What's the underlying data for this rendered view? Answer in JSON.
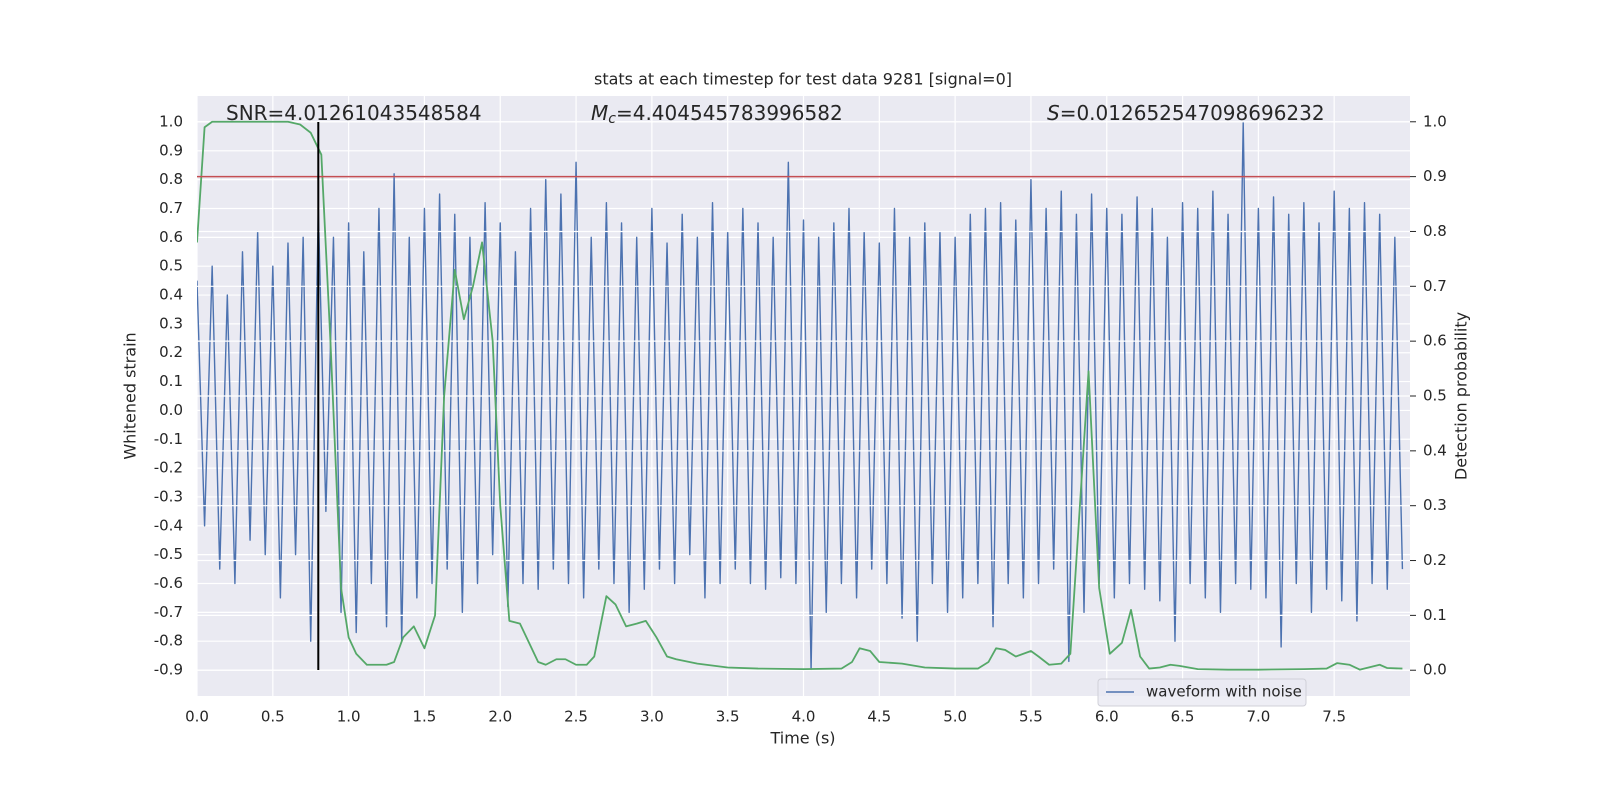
{
  "chart_data": {
    "type": "line",
    "title": "stats at each timestep for test data 9281 [signal=0]",
    "xlabel": "Time (s)",
    "ylabel": "Whitened strain",
    "y2label": "Detection probability",
    "annotations": [
      {
        "text": "SNR=4.01261043548584"
      },
      {
        "symbol": "M",
        "subscript": "c",
        "text": "=4.404545783996582"
      },
      {
        "symbol": "S",
        "text": "=0.012652547098696232"
      }
    ],
    "xlim": [
      0,
      8
    ],
    "ylim": [
      -0.99,
      1.09
    ],
    "y2lim": [
      -0.047,
      1.047
    ],
    "xticks": [
      {
        "value": 0,
        "label": "0.0"
      },
      0.5,
      {
        "value": 1,
        "label": "1.0"
      },
      1.5,
      {
        "value": 2,
        "label": "2.0"
      },
      2.5,
      {
        "value": 3,
        "label": "3.0"
      },
      3.5,
      {
        "value": 4,
        "label": "4.0"
      },
      4.5,
      {
        "value": 5,
        "label": "5.0"
      },
      5.5,
      {
        "value": 6,
        "label": "6.0"
      },
      6.5,
      {
        "value": 7,
        "label": "7.0"
      },
      7.5
    ],
    "yticks": [
      -0.9,
      -0.8,
      -0.7,
      -0.6,
      -0.5,
      -0.4,
      -0.3,
      -0.2,
      -0.1,
      {
        "value": 0,
        "label": "0.0"
      },
      0.1,
      0.2,
      0.3,
      0.4,
      0.5,
      0.6,
      0.7,
      0.8,
      0.9,
      {
        "value": 1,
        "label": "1.0"
      }
    ],
    "y2ticks": [
      {
        "value": 0,
        "label": "0.0"
      },
      0.1,
      0.2,
      0.3,
      0.4,
      0.5,
      0.6,
      0.7,
      0.8,
      0.9,
      {
        "value": 1,
        "label": "1.0"
      }
    ],
    "grid": true,
    "legend": "lower right",
    "threshold": 0.9,
    "threshold_color": "#c44e52",
    "marker_x": 0.8,
    "marker_color": "#000000",
    "series": [
      {
        "name": "waveform with noise",
        "color": "#4c72b0",
        "x": [
          0,
          0.05,
          0.1,
          0.15,
          0.2,
          0.25,
          0.3,
          0.35,
          0.4,
          0.45,
          0.5,
          0.55,
          0.6,
          0.65,
          0.7,
          0.75,
          0.8,
          0.85,
          0.9,
          0.95,
          1,
          1.05,
          1.1,
          1.15,
          1.2,
          1.25,
          1.3,
          1.35,
          1.4,
          1.45,
          1.5,
          1.55,
          1.6,
          1.65,
          1.7,
          1.75,
          1.8,
          1.85,
          1.9,
          1.95,
          2,
          2.05,
          2.1,
          2.15,
          2.2,
          2.25,
          2.3,
          2.35,
          2.4,
          2.45,
          2.5,
          2.55,
          2.6,
          2.65,
          2.7,
          2.75,
          2.8,
          2.85,
          2.9,
          2.95,
          3,
          3.05,
          3.1,
          3.15,
          3.2,
          3.25,
          3.3,
          3.35,
          3.4,
          3.45,
          3.5,
          3.55,
          3.6,
          3.65,
          3.7,
          3.75,
          3.8,
          3.85,
          3.9,
          3.95,
          4,
          4.05,
          4.1,
          4.15,
          4.2,
          4.25,
          4.3,
          4.35,
          4.4,
          4.45,
          4.5,
          4.55,
          4.6,
          4.65,
          4.7,
          4.75,
          4.8,
          4.85,
          4.9,
          4.95,
          5,
          5.05,
          5.1,
          5.15,
          5.2,
          5.25,
          5.3,
          5.35,
          5.4,
          5.45,
          5.5,
          5.55,
          5.6,
          5.65,
          5.7,
          5.75,
          5.8,
          5.85,
          5.9,
          5.95,
          6,
          6.05,
          6.1,
          6.15,
          6.2,
          6.25,
          6.3,
          6.35,
          6.4,
          6.45,
          6.5,
          6.55,
          6.6,
          6.65,
          6.7,
          6.75,
          6.8,
          6.85,
          6.9,
          6.95,
          7,
          7.05,
          7.1,
          7.15,
          7.2,
          7.25,
          7.3,
          7.35,
          7.4,
          7.45,
          7.5,
          7.55,
          7.6,
          7.65,
          7.7,
          7.75,
          7.8,
          7.85,
          7.9,
          7.95
        ],
        "values": [
          0.45,
          -0.4,
          0.5,
          -0.55,
          0.4,
          -0.6,
          0.55,
          -0.45,
          0.62,
          -0.5,
          0.5,
          -0.65,
          0.58,
          -0.5,
          0.6,
          -0.8,
          0.7,
          -0.35,
          0.6,
          -0.7,
          0.65,
          -0.77,
          0.55,
          -0.6,
          0.7,
          -0.75,
          0.82,
          -0.8,
          0.6,
          -0.65,
          0.7,
          -0.6,
          0.75,
          -0.55,
          0.68,
          -0.7,
          0.6,
          -0.6,
          0.72,
          -0.5,
          0.65,
          -0.68,
          0.55,
          -0.6,
          0.7,
          -0.62,
          0.8,
          -0.55,
          0.75,
          -0.6,
          0.86,
          -0.65,
          0.6,
          -0.55,
          0.72,
          -0.6,
          0.65,
          -0.7,
          0.6,
          -0.62,
          0.7,
          -0.55,
          0.58,
          -0.6,
          0.68,
          -0.5,
          0.6,
          -0.65,
          0.72,
          -0.6,
          0.62,
          -0.55,
          0.7,
          -0.6,
          0.65,
          -0.62,
          0.6,
          -0.58,
          0.86,
          -0.6,
          0.66,
          -0.9,
          0.6,
          -0.7,
          0.65,
          -0.6,
          0.7,
          -0.65,
          0.62,
          -0.55,
          0.58,
          -0.6,
          0.7,
          -0.72,
          0.6,
          -0.8,
          0.65,
          -0.6,
          0.62,
          -0.7,
          0.6,
          -0.65,
          0.68,
          -0.6,
          0.7,
          -0.75,
          0.72,
          -0.6,
          0.66,
          -0.65,
          0.8,
          -0.6,
          0.7,
          -0.55,
          0.76,
          -0.87,
          0.68,
          -0.7,
          0.75,
          -0.6,
          0.7,
          -0.65,
          0.68,
          -0.6,
          0.74,
          -0.62,
          0.7,
          -0.66,
          0.6,
          -0.8,
          0.72,
          -0.6,
          0.7,
          -0.65,
          0.76,
          -0.7,
          0.68,
          -0.6,
          1.0,
          -0.62,
          0.7,
          -0.65,
          0.74,
          -0.82,
          0.68,
          -0.6,
          0.72,
          -0.7,
          0.65,
          -0.62,
          0.76,
          -0.66,
          0.7,
          -0.73,
          0.72,
          -0.6,
          0.68,
          -0.62,
          0.6,
          -0.55
        ]
      },
      {
        "color": "#55a868",
        "axis": "y2",
        "x": [
          0,
          0.05,
          0.1,
          0.3,
          0.6,
          0.68,
          0.75,
          0.82,
          0.88,
          0.95,
          1.0,
          1.05,
          1.12,
          1.25,
          1.3,
          1.36,
          1.43,
          1.5,
          1.57,
          1.63,
          1.7,
          1.76,
          1.82,
          1.88,
          1.95,
          2.0,
          2.06,
          2.13,
          2.25,
          2.3,
          2.37,
          2.43,
          2.5,
          2.57,
          2.62,
          2.7,
          2.76,
          2.83,
          2.9,
          2.96,
          3.03,
          3.1,
          3.16,
          3.3,
          3.5,
          3.7,
          4.0,
          4.25,
          4.32,
          4.37,
          4.44,
          4.5,
          4.65,
          4.8,
          5.0,
          5.15,
          5.22,
          5.27,
          5.33,
          5.4,
          5.5,
          5.55,
          5.62,
          5.7,
          5.76,
          5.88,
          5.95,
          6.02,
          6.1,
          6.16,
          6.22,
          6.28,
          6.35,
          6.42,
          6.48,
          6.6,
          6.8,
          7.0,
          7.3,
          7.45,
          7.52,
          7.6,
          7.67,
          7.8,
          7.85,
          7.95
        ],
        "values": [
          0.78,
          0.99,
          1.0,
          1.0,
          1.0,
          0.995,
          0.98,
          0.94,
          0.6,
          0.15,
          0.06,
          0.03,
          0.01,
          0.01,
          0.015,
          0.06,
          0.08,
          0.04,
          0.1,
          0.5,
          0.73,
          0.64,
          0.7,
          0.78,
          0.6,
          0.3,
          0.09,
          0.085,
          0.015,
          0.01,
          0.02,
          0.02,
          0.01,
          0.01,
          0.025,
          0.135,
          0.12,
          0.08,
          0.085,
          0.09,
          0.06,
          0.025,
          0.02,
          0.012,
          0.005,
          0.003,
          0.002,
          0.003,
          0.015,
          0.04,
          0.035,
          0.015,
          0.012,
          0.005,
          0.003,
          0.003,
          0.015,
          0.04,
          0.037,
          0.025,
          0.035,
          0.025,
          0.01,
          0.012,
          0.03,
          0.545,
          0.15,
          0.03,
          0.05,
          0.11,
          0.025,
          0.003,
          0.005,
          0.01,
          0.008,
          0.002,
          0.001,
          0.001,
          0.002,
          0.003,
          0.013,
          0.01,
          0.001,
          0.01,
          0.004,
          0.003
        ]
      }
    ]
  }
}
